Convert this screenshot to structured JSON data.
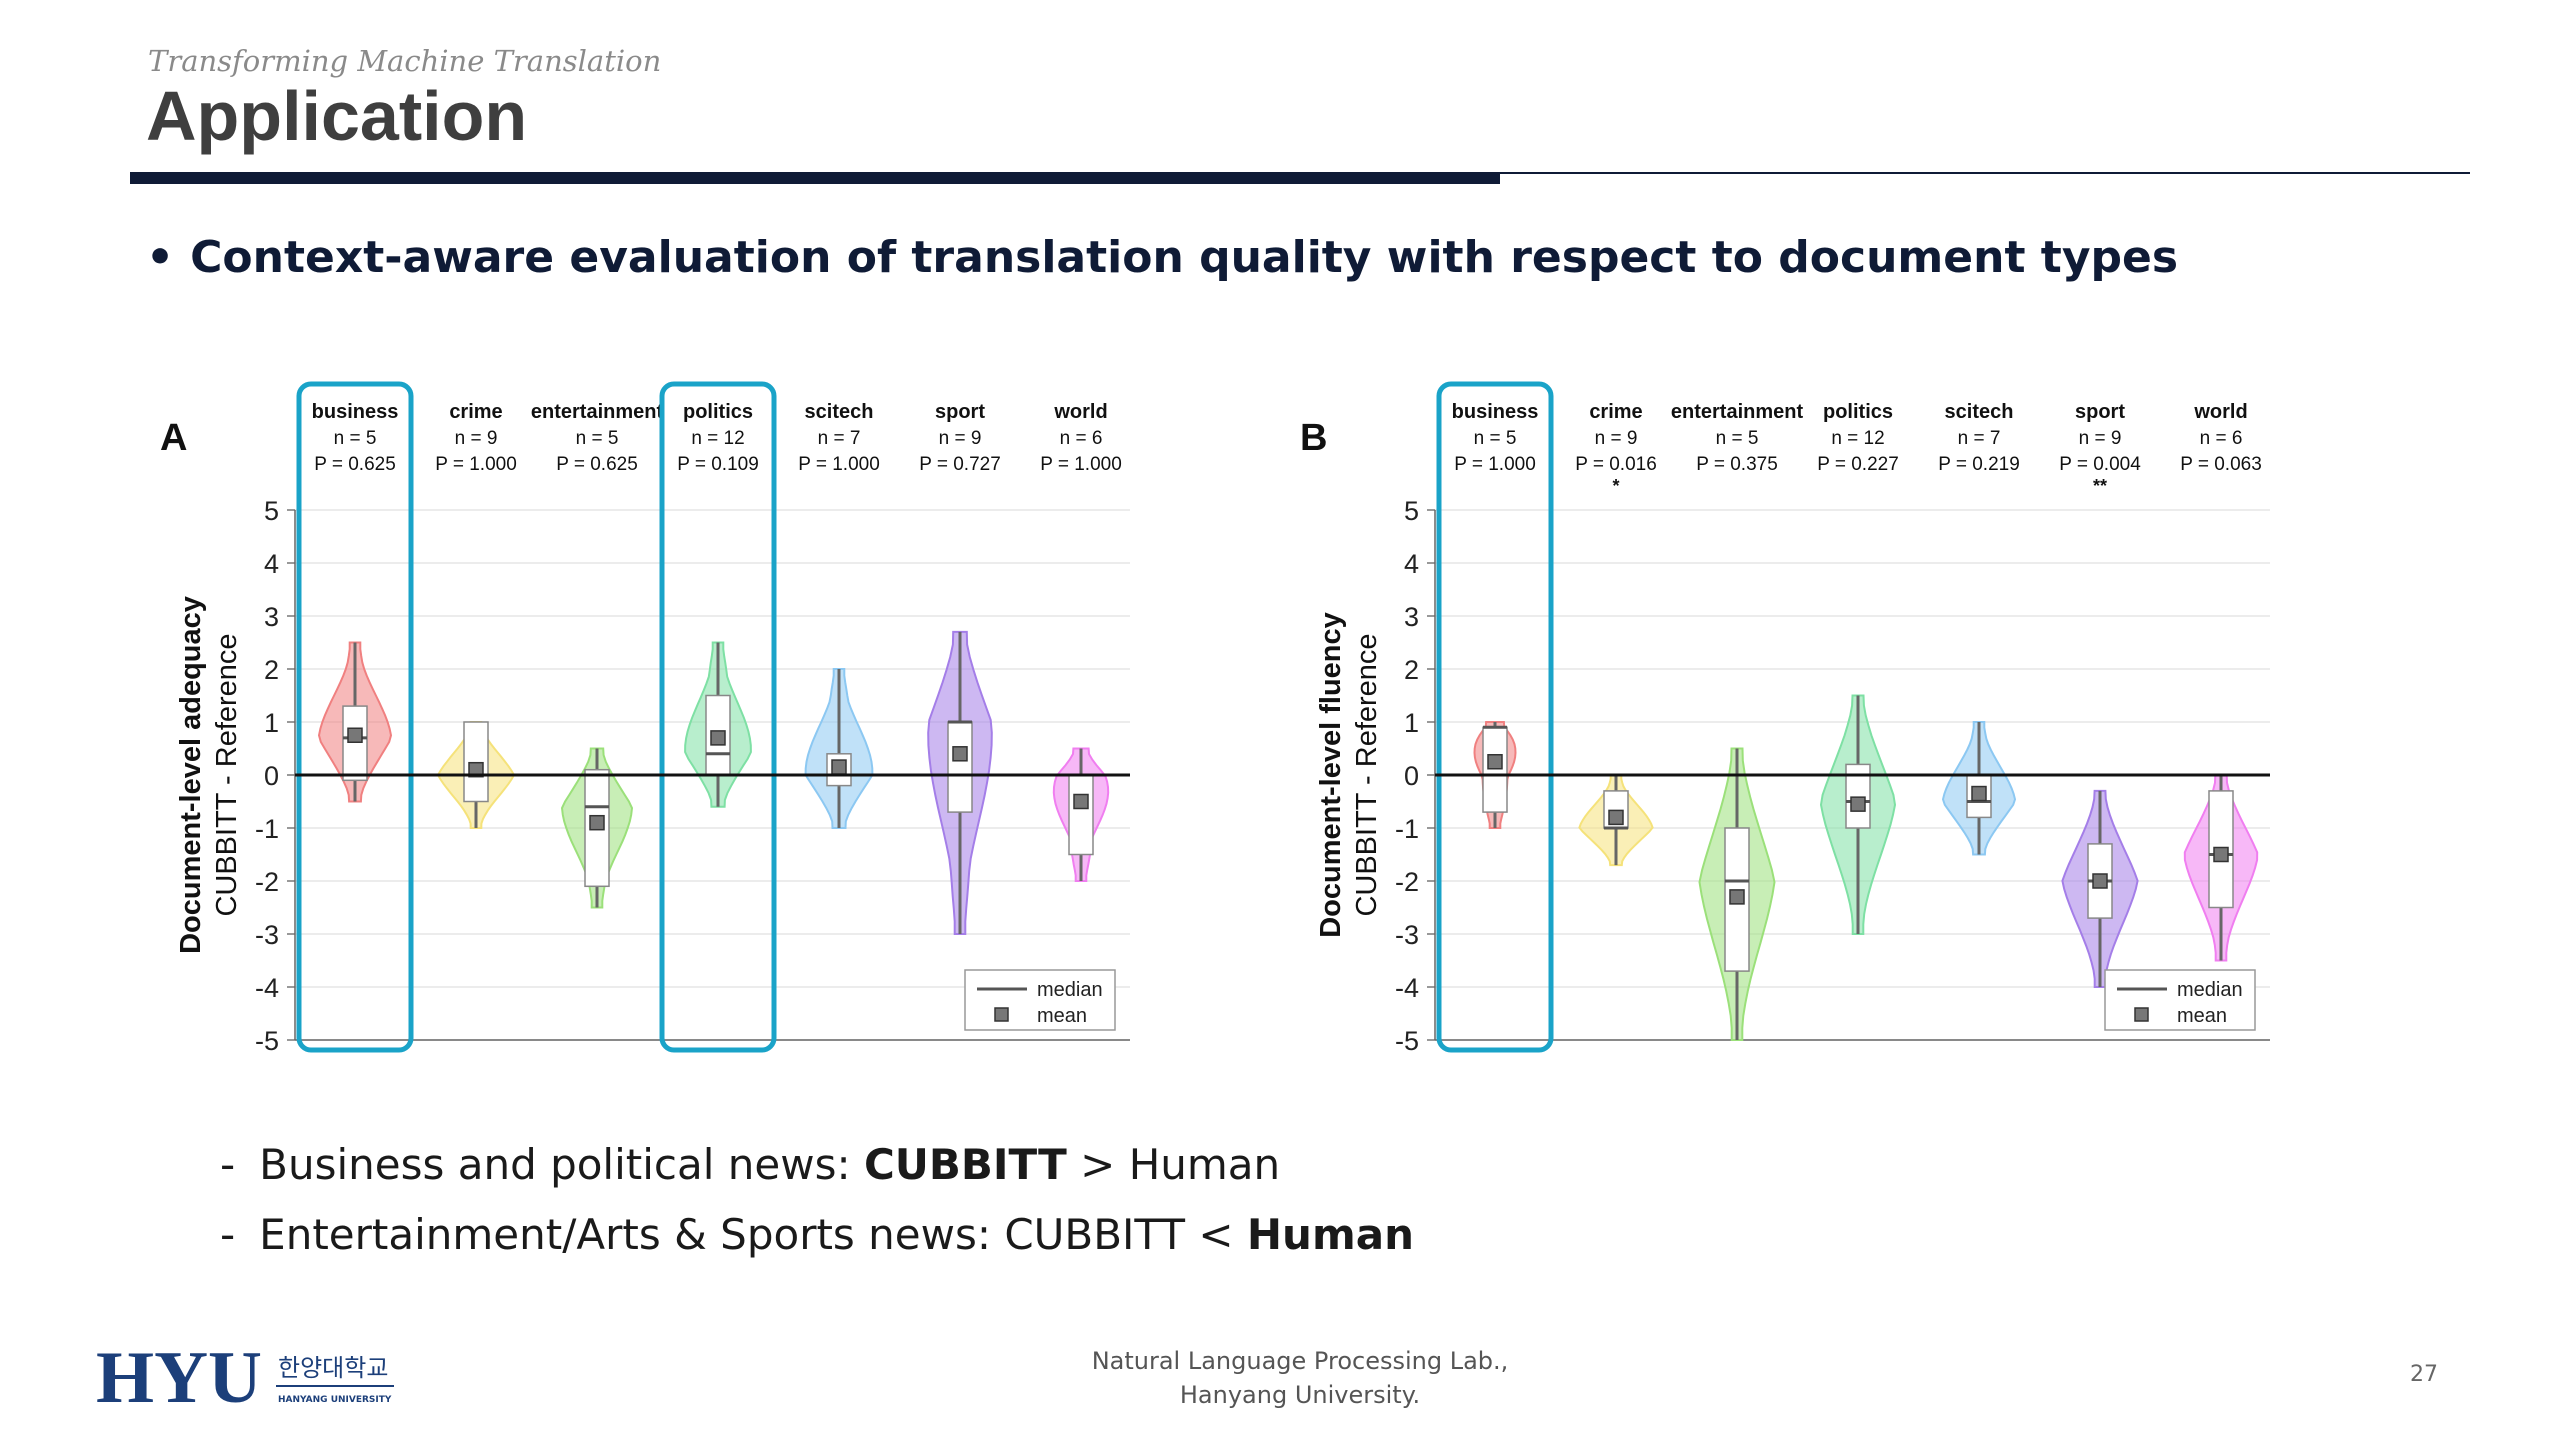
{
  "slide": {
    "subtitle": "Transforming Machine Translation",
    "title": "Application",
    "bullet": "Context-aware evaluation of translation quality with respect to document types",
    "points": [
      {
        "prefix": "Business and political news: ",
        "bold": "CUBBITT",
        "suffix": " > Human"
      },
      {
        "prefix": "Entertainment/Arts & Sports news: CUBBITT < ",
        "bold": "Human",
        "suffix": ""
      }
    ],
    "footer_line1": "Natural Language Processing Lab.,",
    "footer_line2": "Hanyang University.",
    "page_number": "27",
    "logo_text": "HYU",
    "logo_korean": "한양대학교",
    "logo_english": "HANYANG UNIVERSITY",
    "brand_color": "#0f1b36",
    "highlight_color": "#1aa3c8"
  },
  "chart_data": [
    {
      "type": "violin",
      "panel": "A",
      "ylabel_bold": "Document-level adequacy",
      "ylabel": "CUBBITT - Reference",
      "ylim": [
        -5,
        5
      ],
      "yticks": [
        "5",
        "4",
        "3",
        "2",
        "1",
        "0",
        "-1",
        "-2",
        "-3",
        "-4",
        "-5"
      ],
      "legend": [
        "median",
        "mean"
      ],
      "legend_position": "bottom-right",
      "highlighted": [
        "business",
        "politics"
      ],
      "categories": [
        "business",
        "crime",
        "entertainment",
        "politics",
        "scitech",
        "sport",
        "world"
      ],
      "groups": [
        {
          "name": "business",
          "n": "n = 5",
          "p": "P = 0.625",
          "sig": "",
          "color": "#f08080",
          "min": -0.5,
          "max": 2.5,
          "q1": -0.1,
          "q3": 1.3,
          "median": 0.7,
          "mean": 0.75
        },
        {
          "name": "crime",
          "n": "n = 9",
          "p": "P = 1.000",
          "sig": "",
          "color": "#f5e27a",
          "min": -1.0,
          "max": 1.0,
          "q1": -0.5,
          "q3": 1.0,
          "median": 0.0,
          "mean": 0.1
        },
        {
          "name": "entertainment",
          "n": "n = 5",
          "p": "P = 0.625",
          "sig": "",
          "color": "#9be07a",
          "min": -2.5,
          "max": 0.5,
          "q1": -2.1,
          "q3": 0.1,
          "median": -0.6,
          "mean": -0.9
        },
        {
          "name": "politics",
          "n": "n = 12",
          "p": "P = 0.109",
          "sig": "",
          "color": "#7ee0a4",
          "min": -0.6,
          "max": 2.5,
          "q1": 0.0,
          "q3": 1.5,
          "median": 0.4,
          "mean": 0.7
        },
        {
          "name": "scitech",
          "n": "n = 7",
          "p": "P = 1.000",
          "sig": "",
          "color": "#8cc8f2",
          "min": -1.0,
          "max": 2.0,
          "q1": -0.2,
          "q3": 0.4,
          "median": 0.0,
          "mean": 0.15
        },
        {
          "name": "sport",
          "n": "n = 9",
          "p": "P = 0.727",
          "sig": "",
          "color": "#a47ee8",
          "min": -3.0,
          "max": 2.7,
          "q1": -0.7,
          "q3": 1.0,
          "median": 1.0,
          "mean": 0.4
        },
        {
          "name": "world",
          "n": "n = 6",
          "p": "P = 1.000",
          "sig": "",
          "color": "#f07ef0",
          "min": -2.0,
          "max": 0.5,
          "q1": -1.5,
          "q3": 0.0,
          "median": 0.0,
          "mean": -0.5
        }
      ]
    },
    {
      "type": "violin",
      "panel": "B",
      "ylabel_bold": "Document-level fluency",
      "ylabel": "CUBBITT - Reference",
      "ylim": [
        -5,
        5
      ],
      "yticks": [
        "5",
        "4",
        "3",
        "2",
        "1",
        "0",
        "-1",
        "-2",
        "-3",
        "-4",
        "-5"
      ],
      "legend": [
        "median",
        "mean"
      ],
      "legend_position": "bottom-right",
      "highlighted": [
        "business"
      ],
      "categories": [
        "business",
        "crime",
        "entertainment",
        "politics",
        "scitech",
        "sport",
        "world"
      ],
      "groups": [
        {
          "name": "business",
          "n": "n = 5",
          "p": "P = 1.000",
          "sig": "",
          "color": "#f08080",
          "min": -1.0,
          "max": 1.0,
          "q1": -0.7,
          "q3": 0.9,
          "median": 0.9,
          "mean": 0.25
        },
        {
          "name": "crime",
          "n": "n = 9",
          "p": "P = 0.016",
          "sig": "*",
          "color": "#f5e27a",
          "min": -1.7,
          "max": 0.0,
          "q1": -1.0,
          "q3": -0.3,
          "median": -1.0,
          "mean": -0.8
        },
        {
          "name": "entertainment",
          "n": "n = 5",
          "p": "P = 0.375",
          "sig": "",
          "color": "#9be07a",
          "min": -5.0,
          "max": 0.5,
          "q1": -3.7,
          "q3": -1.0,
          "median": -2.0,
          "mean": -2.3
        },
        {
          "name": "politics",
          "n": "n = 12",
          "p": "P = 0.227",
          "sig": "",
          "color": "#7ee0a4",
          "min": -3.0,
          "max": 1.5,
          "q1": -1.0,
          "q3": 0.2,
          "median": -0.5,
          "mean": -0.55
        },
        {
          "name": "scitech",
          "n": "n = 7",
          "p": "P = 0.219",
          "sig": "",
          "color": "#8cc8f2",
          "min": -1.5,
          "max": 1.0,
          "q1": -0.8,
          "q3": 0.0,
          "median": -0.5,
          "mean": -0.35
        },
        {
          "name": "sport",
          "n": "n = 9",
          "p": "P = 0.004",
          "sig": "**",
          "color": "#a47ee8",
          "min": -4.0,
          "max": -0.3,
          "q1": -2.7,
          "q3": -1.3,
          "median": -2.0,
          "mean": -2.0
        },
        {
          "name": "world",
          "n": "n = 6",
          "p": "P = 0.063",
          "sig": "",
          "color": "#f07ef0",
          "min": -3.5,
          "max": 0.0,
          "q1": -2.5,
          "q3": -0.3,
          "median": -1.5,
          "mean": -1.5
        }
      ]
    }
  ]
}
